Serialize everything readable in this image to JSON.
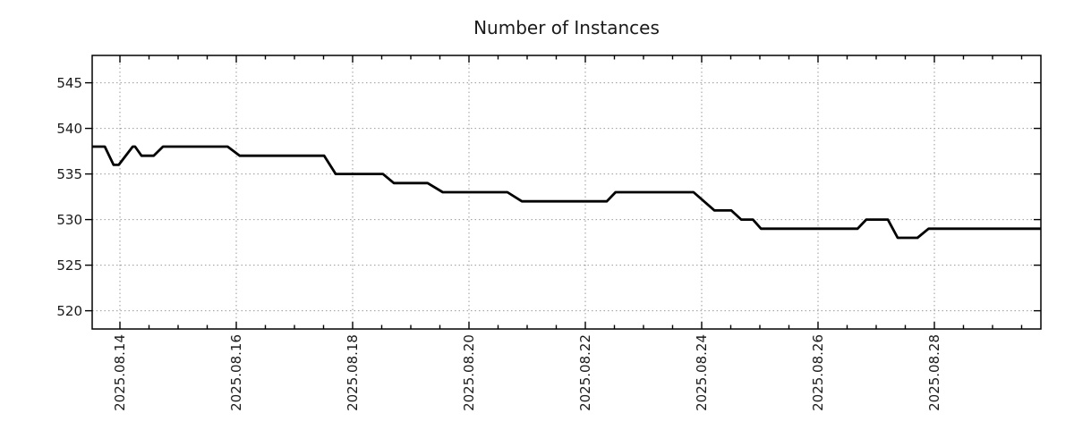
{
  "page": {
    "background": "#ffffff"
  },
  "style": {
    "grid_color": "#999999",
    "axis_color": "#000000",
    "text_color": "#1a1a1a",
    "line_color": "#000000"
  },
  "chart_data": {
    "type": "line",
    "title": "Number of Instances",
    "xlabel": "",
    "ylabel": "",
    "x_unit": "days relative to 2025-08-14 00:00",
    "xlim": [
      -0.477,
      15.831
    ],
    "ylim": [
      518,
      548
    ],
    "grid": true,
    "legend": "none",
    "y_ticks": [
      520,
      525,
      530,
      535,
      540,
      545
    ],
    "x_major_ticks": [
      {
        "pos": 0,
        "label": "2025.08.14"
      },
      {
        "pos": 2,
        "label": "2025.08.16"
      },
      {
        "pos": 4,
        "label": "2025.08.18"
      },
      {
        "pos": 6,
        "label": "2025.08.20"
      },
      {
        "pos": 8,
        "label": "2025.08.22"
      },
      {
        "pos": 10,
        "label": "2025.08.24"
      },
      {
        "pos": 12,
        "label": "2025.08.26"
      },
      {
        "pos": 14,
        "label": "2025.08.28"
      }
    ],
    "x_minor_interval": 0.5,
    "series": [
      {
        "name": "Number of Instances",
        "color": "#000000",
        "points": [
          [
            -0.477,
            538
          ],
          [
            -0.26,
            538
          ],
          [
            -0.11,
            536
          ],
          [
            -0.02,
            536
          ],
          [
            0.22,
            538
          ],
          [
            0.26,
            538
          ],
          [
            0.37,
            537
          ],
          [
            0.58,
            537
          ],
          [
            0.74,
            538
          ],
          [
            1.85,
            538
          ],
          [
            2.06,
            537
          ],
          [
            3.51,
            537
          ],
          [
            3.71,
            535
          ],
          [
            4.52,
            535
          ],
          [
            4.71,
            534
          ],
          [
            5.29,
            534
          ],
          [
            5.55,
            533
          ],
          [
            6.66,
            533
          ],
          [
            6.91,
            532
          ],
          [
            8.37,
            532
          ],
          [
            8.52,
            533
          ],
          [
            9.86,
            533
          ],
          [
            10.22,
            531
          ],
          [
            10.51,
            531
          ],
          [
            10.68,
            530
          ],
          [
            10.88,
            530
          ],
          [
            11.02,
            529
          ],
          [
            12.68,
            529
          ],
          [
            12.83,
            530
          ],
          [
            13.2,
            530
          ],
          [
            13.37,
            528
          ],
          [
            13.71,
            528
          ],
          [
            13.9,
            529
          ],
          [
            15.831,
            529
          ]
        ]
      }
    ]
  }
}
